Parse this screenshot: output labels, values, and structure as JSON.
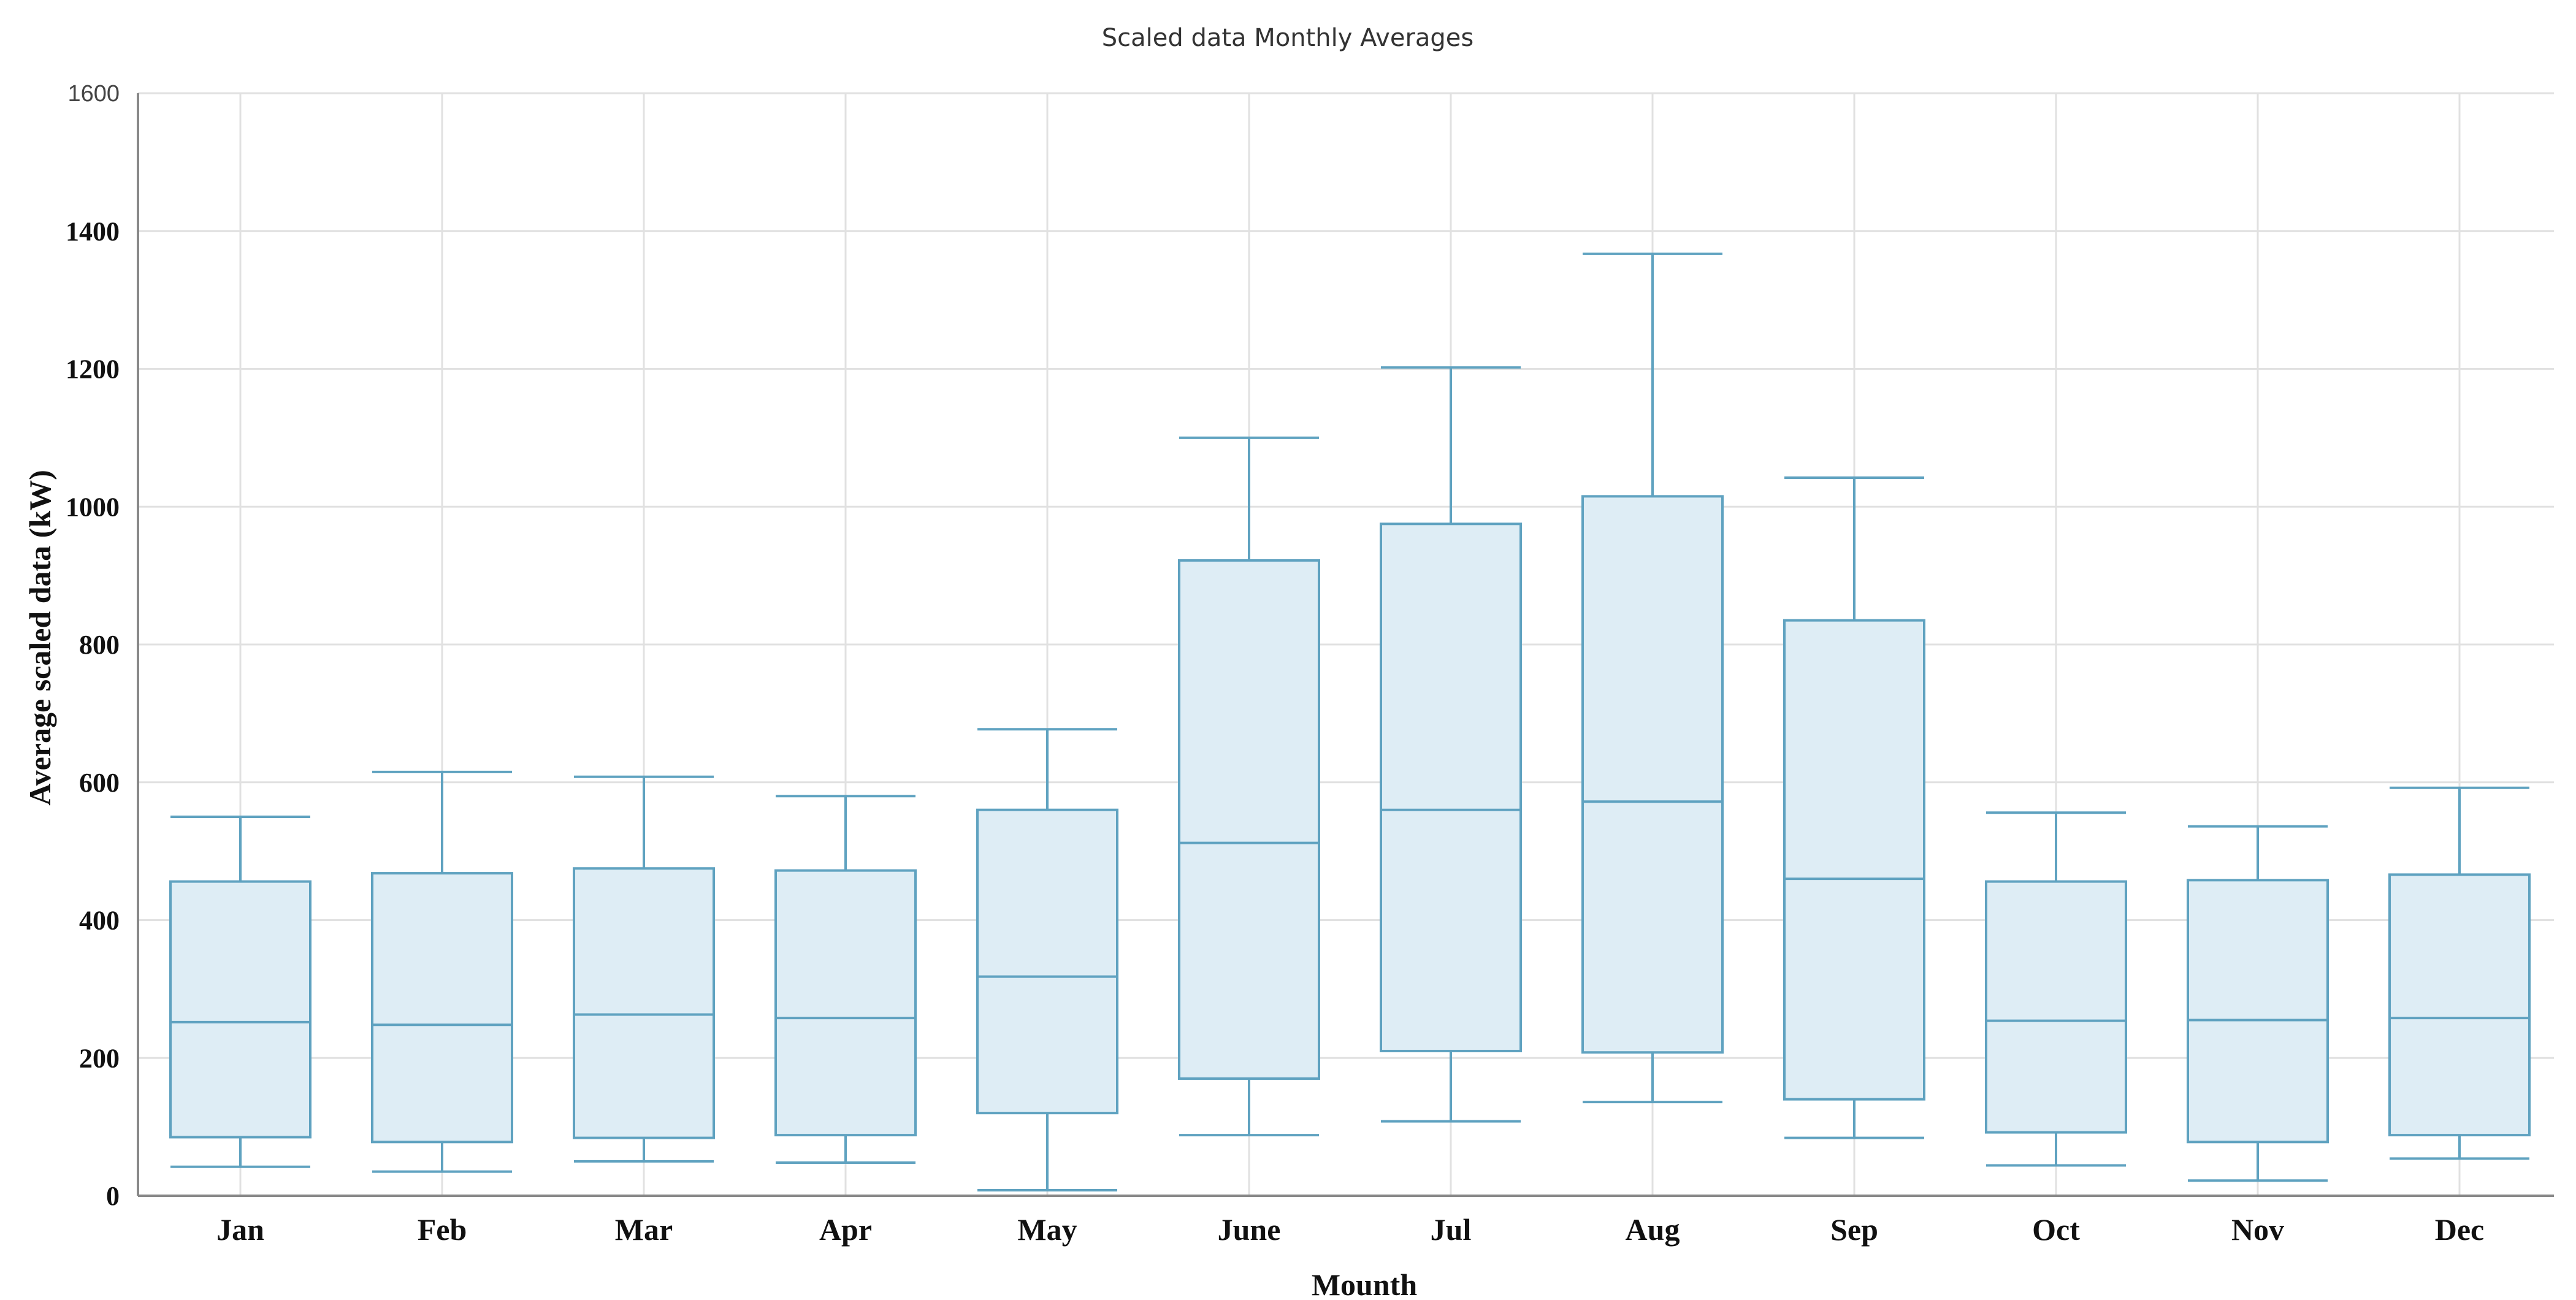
{
  "chart_data": {
    "type": "boxplot",
    "title": "Scaled data Monthly Averages",
    "xlabel": "Mounth",
    "ylabel": "Average scaled data (kW)",
    "ylim": [
      0,
      1600
    ],
    "yticks": [
      0,
      200,
      400,
      600,
      800,
      1000,
      1200,
      1400,
      1600
    ],
    "ytick_labels": [
      "0",
      "200",
      "400",
      "600",
      "800",
      "1000",
      "1200",
      "1400",
      "1600"
    ],
    "grid": true,
    "colors": {
      "box_fill": "#deedf5",
      "box_stroke": "#5fa2c0"
    },
    "categories": [
      "Jan",
      "Feb",
      "Mar",
      "Apr",
      "May",
      "June",
      "Jul",
      "Aug",
      "Sep",
      "Oct",
      "Nov",
      "Dec"
    ],
    "boxes": [
      {
        "label": "Jan",
        "min": 42,
        "q1": 85,
        "median": 252,
        "q3": 456,
        "max": 550
      },
      {
        "label": "Feb",
        "min": 35,
        "q1": 78,
        "median": 248,
        "q3": 468,
        "max": 615
      },
      {
        "label": "Mar",
        "min": 50,
        "q1": 84,
        "median": 263,
        "q3": 475,
        "max": 608
      },
      {
        "label": "Apr",
        "min": 48,
        "q1": 88,
        "median": 258,
        "q3": 472,
        "max": 580
      },
      {
        "label": "May",
        "min": 8,
        "q1": 120,
        "median": 318,
        "q3": 560,
        "max": 677
      },
      {
        "label": "June",
        "min": 88,
        "q1": 170,
        "median": 512,
        "q3": 922,
        "max": 1100
      },
      {
        "label": "Jul",
        "min": 108,
        "q1": 210,
        "median": 560,
        "q3": 975,
        "max": 1202
      },
      {
        "label": "Aug",
        "min": 136,
        "q1": 208,
        "median": 572,
        "q3": 1015,
        "max": 1367
      },
      {
        "label": "Sep",
        "min": 84,
        "q1": 140,
        "median": 460,
        "q3": 835,
        "max": 1042
      },
      {
        "label": "Oct",
        "min": 44,
        "q1": 92,
        "median": 254,
        "q3": 456,
        "max": 556
      },
      {
        "label": "Nov",
        "min": 22,
        "q1": 78,
        "median": 255,
        "q3": 458,
        "max": 536
      },
      {
        "label": "Dec",
        "min": 54,
        "q1": 88,
        "median": 258,
        "q3": 466,
        "max": 592
      }
    ]
  }
}
